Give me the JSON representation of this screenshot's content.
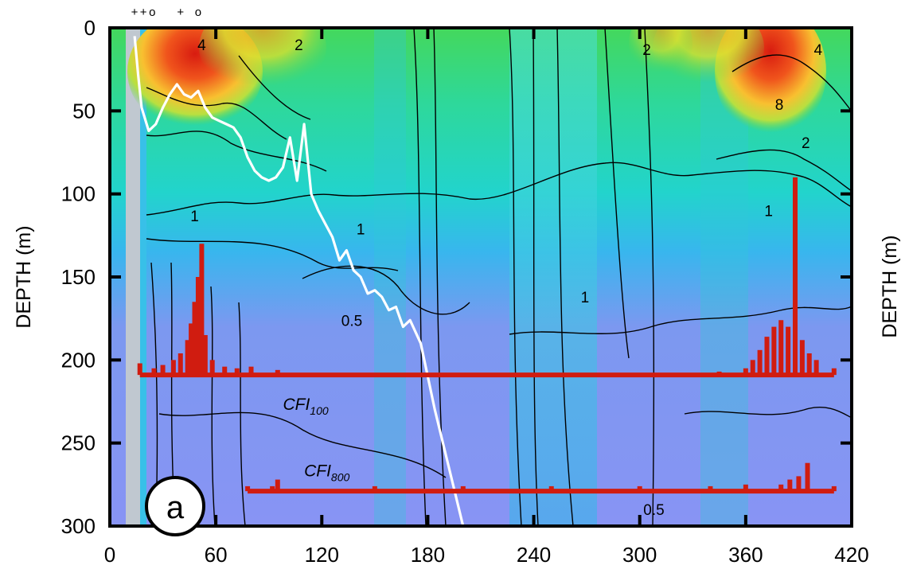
{
  "chart_data": {
    "type": "heatmap",
    "title": "",
    "xlabel": "",
    "ylabel": "DEPTH (m)",
    "right_axis_label": "DEPTH (m)",
    "xlim": [
      0,
      420
    ],
    "ylim": [
      300,
      0
    ],
    "x_ticks": [
      0,
      60,
      120,
      180,
      240,
      300,
      360,
      420
    ],
    "y_ticks": [
      0,
      50,
      100,
      150,
      200,
      250,
      300
    ],
    "panel_label": "a",
    "top_markers": [
      "+",
      "+",
      "o",
      "+",
      "o"
    ],
    "top_marker_x": [
      14,
      19,
      24,
      40,
      50
    ],
    "contour_labels": [
      {
        "text": "4",
        "x": 52,
        "y": 10
      },
      {
        "text": "2",
        "x": 107,
        "y": 10
      },
      {
        "text": "1",
        "x": 48,
        "y": 113
      },
      {
        "text": "1",
        "x": 142,
        "y": 121
      },
      {
        "text": "0.5",
        "x": 137,
        "y": 176
      },
      {
        "text": "1",
        "x": 269,
        "y": 162
      },
      {
        "text": "2",
        "x": 304,
        "y": 13
      },
      {
        "text": "4",
        "x": 401,
        "y": 13
      },
      {
        "text": "8",
        "x": 379,
        "y": 46
      },
      {
        "text": "2",
        "x": 394,
        "y": 69
      },
      {
        "text": "1",
        "x": 373,
        "y": 110
      },
      {
        "text": "0.5",
        "x": 308,
        "y": 290
      }
    ],
    "series": [
      {
        "name": "CFI100",
        "label_main": "CFI",
        "label_sub": "100",
        "label_x": 98,
        "label_y": 230,
        "baseline_depth": 209,
        "x": [
          17,
          25,
          30,
          36,
          40,
          44,
          46,
          48,
          50,
          52,
          54,
          58,
          65,
          72,
          80,
          95,
          150,
          200,
          250,
          300,
          345,
          360,
          364,
          368,
          372,
          376,
          380,
          384,
          388,
          392,
          396,
          400,
          410
        ],
        "top_depth": [
          202,
          205,
          203,
          200,
          196,
          188,
          178,
          165,
          150,
          130,
          185,
          200,
          204,
          205,
          204,
          206,
          208,
          208,
          208,
          208,
          207,
          205,
          200,
          194,
          186,
          180,
          176,
          180,
          90,
          188,
          196,
          200,
          205
        ]
      },
      {
        "name": "CFI800",
        "label_main": "CFI",
        "label_sub": "800",
        "label_x": 110,
        "label_y": 270,
        "baseline_depth": 279,
        "x": [
          78,
          92,
          95,
          150,
          200,
          250,
          300,
          340,
          360,
          380,
          385,
          390,
          395,
          410
        ],
        "top_depth": [
          276,
          276,
          272,
          276,
          276,
          276,
          276,
          276,
          275,
          275,
          272,
          270,
          262,
          276
        ]
      }
    ],
    "boundary_line": {
      "name": "white line",
      "color": "#ffffff",
      "x": [
        14,
        16,
        18,
        22,
        26,
        30,
        34,
        38,
        42,
        46,
        50,
        54,
        58,
        62,
        66,
        70,
        74,
        78,
        82,
        86,
        90,
        94,
        98,
        102,
        106,
        110,
        114,
        118,
        122,
        126,
        130,
        134,
        138,
        142,
        146,
        150,
        154,
        158,
        162,
        166,
        170,
        176,
        184,
        192,
        200
      ],
      "y": [
        5,
        28,
        48,
        62,
        58,
        48,
        40,
        34,
        40,
        42,
        38,
        48,
        54,
        56,
        58,
        60,
        66,
        78,
        86,
        90,
        92,
        90,
        84,
        66,
        92,
        58,
        100,
        110,
        118,
        126,
        140,
        134,
        146,
        150,
        160,
        158,
        162,
        170,
        168,
        180,
        176,
        190,
        230,
        265,
        300
      ]
    },
    "color_scale": "rainbow (blue low, red high)"
  }
}
